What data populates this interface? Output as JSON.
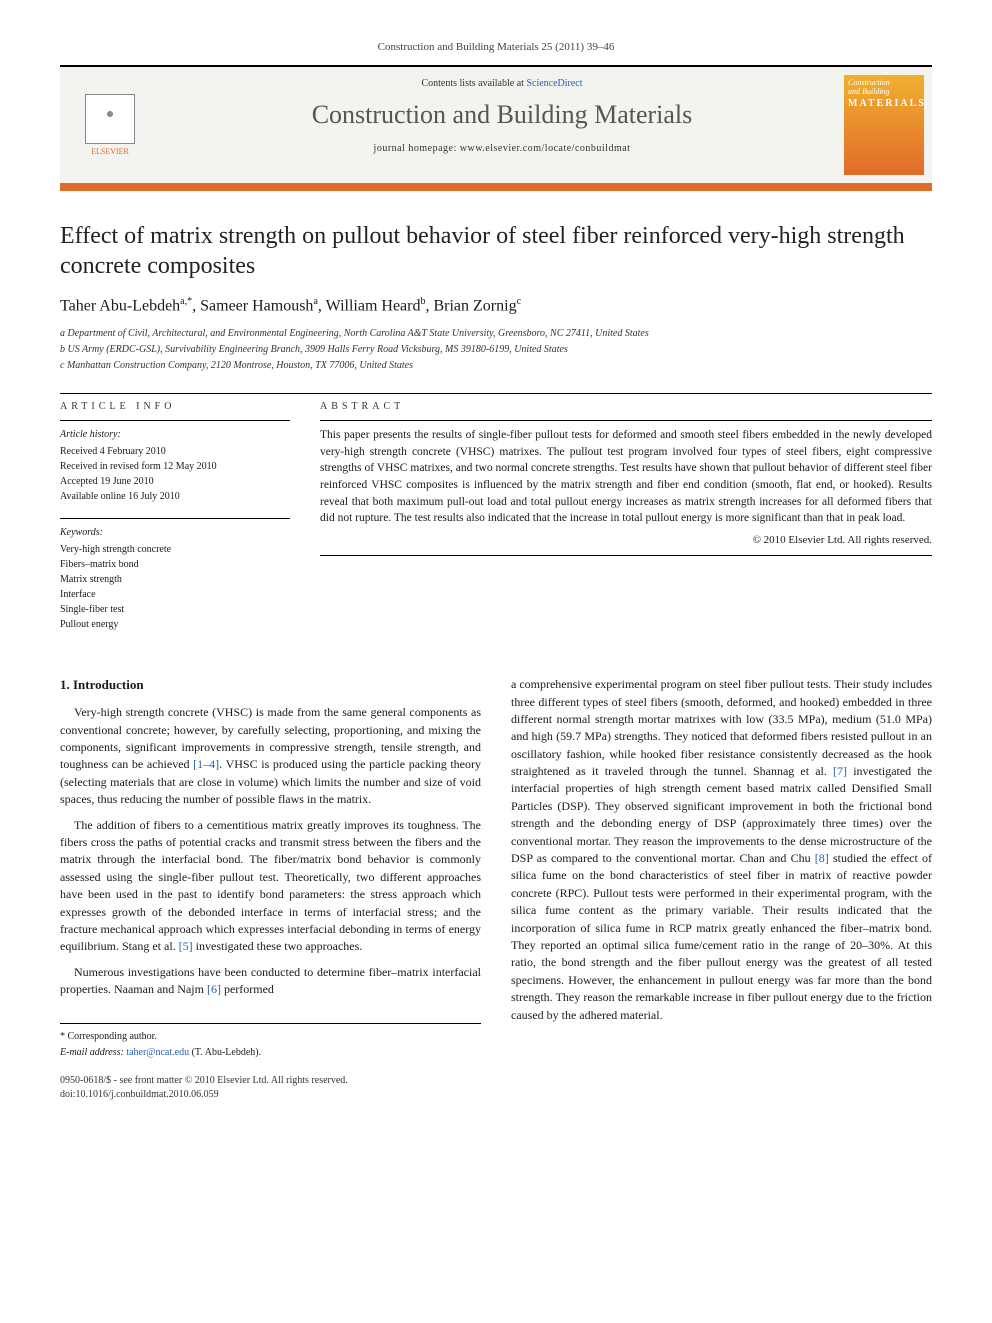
{
  "journal_ref": "Construction and Building Materials 25 (2011) 39–46",
  "header": {
    "contents_prefix": "Contents lists available at ",
    "contents_link": "ScienceDirect",
    "journal_name": "Construction and Building Materials",
    "homepage_prefix": "journal homepage: ",
    "homepage_url": "www.elsevier.com/locate/conbuildmat",
    "publisher_label": "ELSEVIER",
    "cover": {
      "line1": "Construction",
      "line2": "and Building",
      "line3": "MATERIALS"
    },
    "colors": {
      "orange": "#e16b2a",
      "header_bg": "#f3f3f0",
      "link": "#2a5db0"
    }
  },
  "title": "Effect of matrix strength on pullout behavior of steel fiber reinforced very-high strength concrete composites",
  "authors_html": {
    "a1": "Taher Abu-Lebdeh",
    "a1_sup": "a,*",
    "a2": "Sameer Hamoush",
    "a2_sup": "a",
    "a3": "William Heard",
    "a3_sup": "b",
    "a4": "Brian Zornig",
    "a4_sup": "c"
  },
  "affiliations": [
    "a Department of Civil, Architectural, and Environmental Engineering, North Carolina A&T State University, Greensboro, NC 27411, United States",
    "b US Army (ERDC-GSL), Survivability Engineering Branch, 3909 Halls Ferry Road Vicksburg, MS 39180-6199, United States",
    "c Manhattan Construction Company, 2120 Montrose, Houston, TX 77006, United States"
  ],
  "article_info": {
    "heading": "ARTICLE INFO",
    "history_label": "Article history:",
    "history": [
      "Received 4 February 2010",
      "Received in revised form 12 May 2010",
      "Accepted 19 June 2010",
      "Available online 16 July 2010"
    ],
    "keywords_label": "Keywords:",
    "keywords": [
      "Very-high strength concrete",
      "Fibers–matrix bond",
      "Matrix strength",
      "Interface",
      "Single-fiber test",
      "Pullout energy"
    ]
  },
  "abstract": {
    "heading": "ABSTRACT",
    "text": "This paper presents the results of single-fiber pullout tests for deformed and smooth steel fibers embedded in the newly developed very-high strength concrete (VHSC) matrixes. The pullout test program involved four types of steel fibers, eight compressive strengths of VHSC matrixes, and two normal concrete strengths. Test results have shown that pullout behavior of different steel fiber reinforced VHSC composites is influenced by the matrix strength and fiber end condition (smooth, flat end, or hooked). Results reveal that both maximum pull-out load and total pullout energy increases as matrix strength increases for all deformed fibers that did not rupture. The test results also indicated that the increase in total pullout energy is more significant than that in peak load.",
    "copyright": "© 2010 Elsevier Ltd. All rights reserved."
  },
  "body": {
    "intro_heading": "1. Introduction",
    "left_paras": [
      "Very-high strength concrete (VHSC) is made from the same general components as conventional concrete; however, by carefully selecting, proportioning, and mixing the components, significant improvements in compressive strength, tensile strength, and toughness can be achieved [1–4]. VHSC is produced using the particle packing theory (selecting materials that are close in volume) which limits the number and size of void spaces, thus reducing the number of possible flaws in the matrix.",
      "The addition of fibers to a cementitious matrix greatly improves its toughness. The fibers cross the paths of potential cracks and transmit stress between the fibers and the matrix through the interfacial bond. The fiber/matrix bond behavior is commonly assessed using the single-fiber pullout test. Theoretically, two different approaches have been used in the past to identify bond parameters: the stress approach which expresses growth of the debonded interface in terms of interfacial stress; and the fracture mechanical approach which expresses interfacial debonding in terms of energy equilibrium. Stang et al. [5] investigated these two approaches.",
      "Numerous investigations have been conducted to determine fiber–matrix interfacial properties. Naaman and Najm [6] performed"
    ],
    "right_paras": [
      "a comprehensive experimental program on steel fiber pullout tests. Their study includes three different types of steel fibers (smooth, deformed, and hooked) embedded in three different normal strength mortar matrixes with low (33.5 MPa), medium (51.0 MPa) and high (59.7 MPa) strengths. They noticed that deformed fibers resisted pullout in an oscillatory fashion, while hooked fiber resistance consistently decreased as the hook straightened as it traveled through the tunnel. Shannag et al. [7] investigated the interfacial properties of high strength cement based matrix called Densified Small Particles (DSP). They observed significant improvement in both the frictional bond strength and the debonding energy of DSP (approximately three times) over the conventional mortar. They reason the improvements to the dense microstructure of the DSP as compared to the conventional mortar. Chan and Chu [8] studied the effect of silica fume on the bond characteristics of steel fiber in matrix of reactive powder concrete (RPC). Pullout tests were performed in their experimental program, with the silica fume content as the primary variable. Their results indicated that the incorporation of silica fume in RCP matrix greatly enhanced the fiber–matrix bond. They reported an optimal silica fume/cement ratio in the range of 20–30%. At this ratio, the bond strength and the fiber pullout energy was the greatest of all tested specimens. However, the enhancement in pullout energy was far more than the bond strength. They reason the remarkable increase in fiber pullout energy due to the friction caused by the adhered material."
    ]
  },
  "footer": {
    "corr_label": "* Corresponding author.",
    "email_label": "E-mail address: ",
    "email": "taher@ncat.edu",
    "email_name": " (T. Abu-Lebdeh).",
    "issn_line": "0950-0618/$ - see front matter © 2010 Elsevier Ltd. All rights reserved.",
    "doi_line": "doi:10.1016/j.conbuildmat.2010.06.059"
  }
}
